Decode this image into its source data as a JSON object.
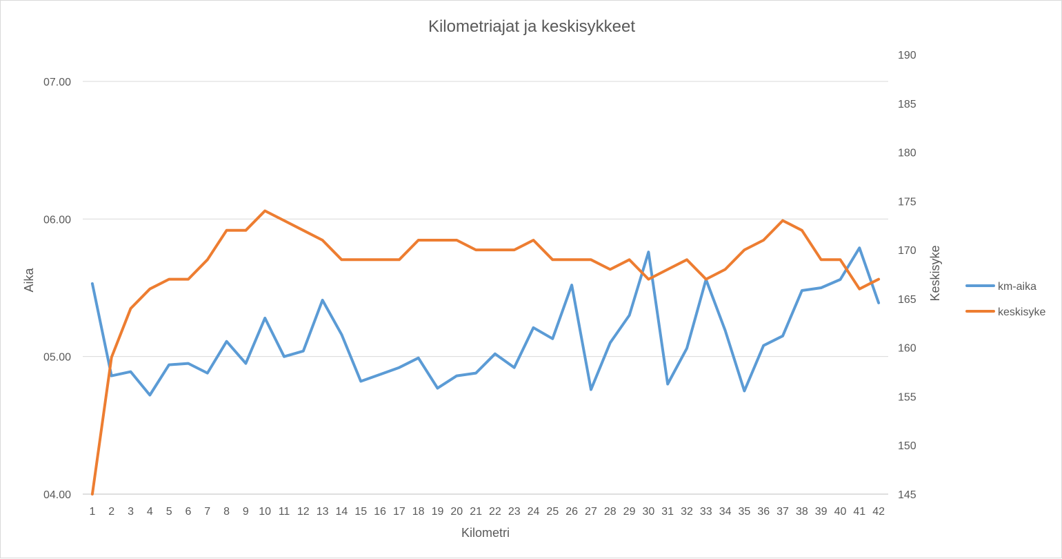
{
  "chart_data": {
    "type": "line",
    "title": "Kilometriajat ja keskisykkeet",
    "xlabel": "Kilometri",
    "ylabel_left": "Aika",
    "ylabel_right": "Keskisyke",
    "categories": [
      "1",
      "2",
      "3",
      "4",
      "5",
      "6",
      "7",
      "8",
      "9",
      "10",
      "11",
      "12",
      "13",
      "14",
      "15",
      "16",
      "17",
      "18",
      "19",
      "20",
      "21",
      "22",
      "23",
      "24",
      "25",
      "26",
      "27",
      "28",
      "29",
      "30",
      "31",
      "32",
      "33",
      "34",
      "35",
      "36",
      "37",
      "38",
      "39",
      "40",
      "41",
      "42"
    ],
    "y_left": {
      "ticks": [
        "04.00",
        "05.00",
        "06.00",
        "07.00"
      ],
      "tick_values": [
        4,
        5,
        6,
        7
      ],
      "range": [
        4,
        7
      ]
    },
    "y_right": {
      "ticks": [
        "145",
        "150",
        "155",
        "160",
        "165",
        "170",
        "175",
        "180",
        "185",
        "190"
      ],
      "tick_values": [
        145,
        150,
        155,
        160,
        165,
        170,
        175,
        180,
        185,
        190
      ],
      "range": [
        145,
        190
      ]
    },
    "grid": true,
    "legend_position": "right",
    "series": [
      {
        "name": "km-aika",
        "axis": "left",
        "color": "#5b9bd5",
        "values": [
          5.53,
          4.86,
          4.89,
          4.72,
          4.94,
          4.95,
          4.88,
          5.11,
          4.95,
          5.28,
          5.0,
          5.04,
          5.41,
          5.16,
          4.82,
          4.87,
          4.92,
          4.99,
          4.77,
          4.86,
          4.88,
          5.02,
          4.92,
          5.21,
          5.13,
          5.52,
          4.76,
          5.1,
          5.3,
          5.76,
          4.8,
          5.06,
          5.56,
          5.19,
          4.75,
          5.08,
          5.15,
          5.48,
          5.5,
          5.56,
          5.79,
          5.39
        ]
      },
      {
        "name": "keskisyke",
        "axis": "right",
        "color": "#ed7d31",
        "values": [
          145,
          159,
          164,
          166,
          167,
          167,
          169,
          172,
          172,
          174,
          173,
          172,
          171,
          169,
          169,
          169,
          169,
          171,
          171,
          171,
          170,
          170,
          170,
          171,
          169,
          169,
          169,
          168,
          169,
          167,
          168,
          169,
          167,
          168,
          170,
          171,
          173,
          172,
          169,
          169,
          166,
          167
        ]
      }
    ]
  }
}
